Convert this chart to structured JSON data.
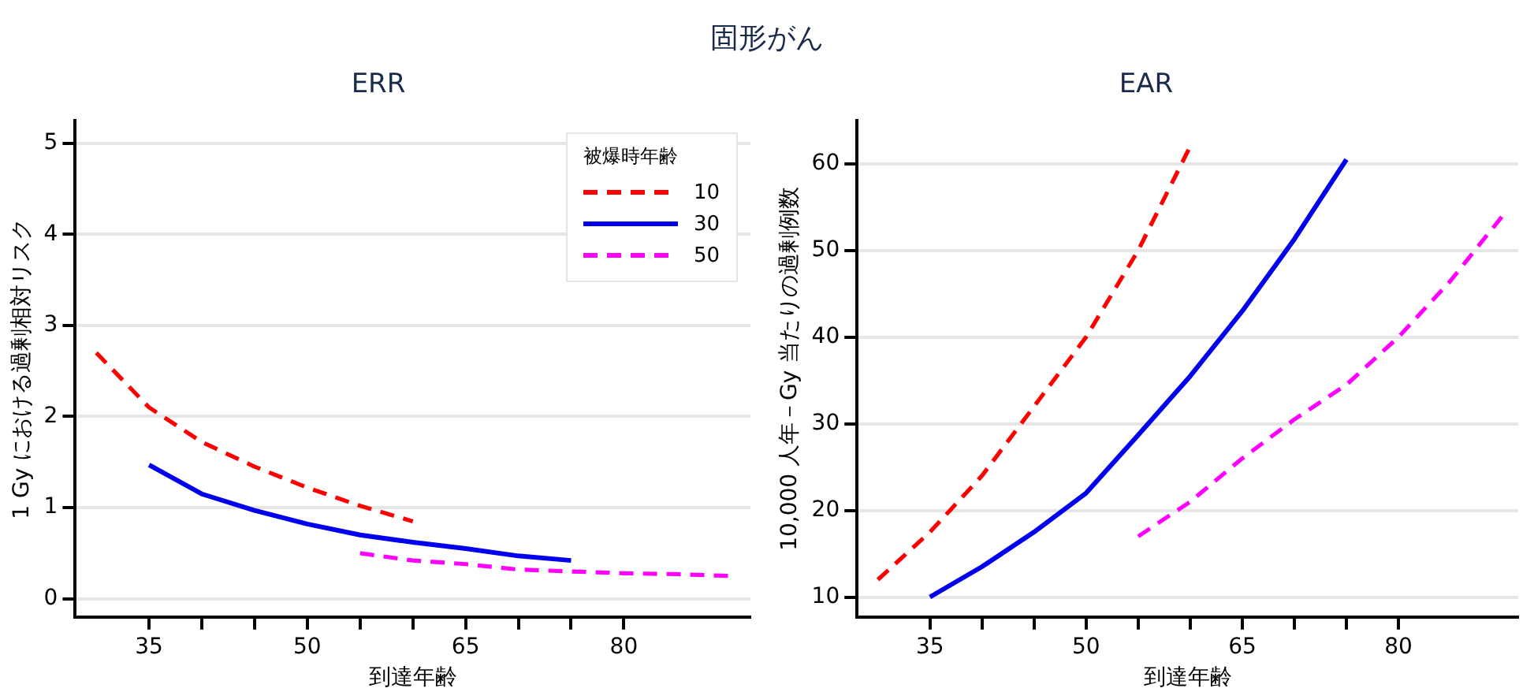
{
  "chart_data": [
    {
      "type": "line",
      "title": "固形がん",
      "subtitle": "ERR",
      "xlabel": "到達年齢",
      "ylabel": "1 Gy における過剰相対リスク",
      "legend_title": "被爆時年齢",
      "legend": "top right",
      "grid": "y",
      "xlim": [
        28,
        92
      ],
      "xticks": [
        35,
        {
          "value": 40,
          "label": null
        },
        {
          "value": 45,
          "label": null
        },
        50,
        {
          "value": 55,
          "label": null
        },
        {
          "value": 60,
          "label": null
        },
        65,
        {
          "value": 70,
          "label": null
        },
        {
          "value": 75,
          "label": null
        },
        80
      ],
      "ylim": [
        -0.2,
        5.25
      ],
      "yticks": [
        0,
        1,
        2,
        3,
        4,
        5
      ],
      "series": [
        {
          "name": "10",
          "color": "#ff0000",
          "line_style": "dashed",
          "x": [
            30,
            35,
            40,
            45,
            50,
            55,
            60
          ],
          "values": [
            2.7,
            2.1,
            1.72,
            1.45,
            1.22,
            1.02,
            0.85
          ]
        },
        {
          "name": "30",
          "color": "#0000ee",
          "line_style": "solid",
          "x": [
            35,
            40,
            45,
            50,
            55,
            60,
            65,
            70,
            75
          ],
          "values": [
            1.47,
            1.15,
            0.97,
            0.82,
            0.7,
            0.62,
            0.55,
            0.47,
            0.42
          ]
        },
        {
          "name": "50",
          "color": "#ff00ff",
          "line_style": "dashed",
          "x": [
            55,
            60,
            65,
            70,
            75,
            80,
            85,
            90
          ],
          "values": [
            0.5,
            0.42,
            0.38,
            0.32,
            0.3,
            0.28,
            0.27,
            0.25
          ]
        }
      ]
    },
    {
      "type": "line",
      "subtitle": "EAR",
      "xlabel": "到達年齢",
      "ylabel": "10,000 人年－Gy 当たりの過剰例数",
      "grid": "y",
      "xlim": [
        28,
        91.5
      ],
      "xticks": [
        35,
        {
          "value": 40,
          "label": null
        },
        {
          "value": 45,
          "label": null
        },
        50,
        {
          "value": 55,
          "label": null
        },
        {
          "value": 60,
          "label": null
        },
        65,
        {
          "value": 70,
          "label": null
        },
        {
          "value": 75,
          "label": null
        },
        80
      ],
      "ylim": [
        7.7,
        65
      ],
      "yticks": [
        10,
        20,
        30,
        40,
        50,
        60
      ],
      "series": [
        {
          "color": "#ff0000",
          "line_style": "dashed",
          "x": [
            30,
            35,
            40,
            45,
            50,
            55,
            60
          ],
          "values": [
            12,
            17.5,
            24,
            32,
            40,
            50,
            62
          ]
        },
        {
          "color": "#0000ee",
          "line_style": "solid",
          "x": [
            35,
            40,
            45,
            50,
            55,
            60,
            65,
            70,
            75
          ],
          "values": [
            10,
            13.5,
            17.5,
            22,
            28.7,
            35.5,
            43,
            51.3,
            60.5
          ]
        },
        {
          "color": "#ff00ff",
          "line_style": "dashed",
          "x": [
            55,
            60,
            65,
            70,
            75,
            80,
            85,
            90
          ],
          "values": [
            17,
            21,
            26,
            30.5,
            34.5,
            40,
            46.5,
            54
          ]
        }
      ]
    }
  ]
}
